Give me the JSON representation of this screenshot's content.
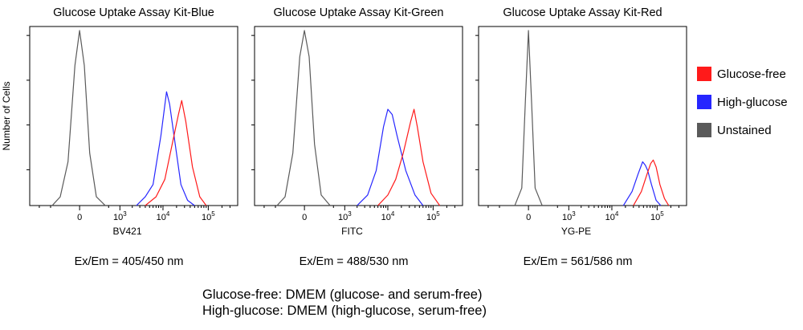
{
  "ylabel": "Number of Cells",
  "legend": [
    {
      "label": "Glucose-free",
      "color": "#ff1a1a"
    },
    {
      "label": "High-glucose",
      "color": "#2626ff"
    },
    {
      "label": "Unstained",
      "color": "#5a5a5a"
    }
  ],
  "notes": [
    "Glucose-free: DMEM (glucose- and serum-free)",
    "High-glucose: DMEM (high-glucose, serum-free)"
  ],
  "chart_data": [
    {
      "type": "area",
      "title": "Glucose Uptake Assay Kit-Blue",
      "xlabel": "BV421",
      "caption": "Ex/Em = 405/450 nm",
      "x_scale": "biexponential",
      "x_ticks": [
        "0",
        "10^3",
        "10^4",
        "10^5"
      ],
      "grid": false,
      "series": [
        {
          "name": "Unstained",
          "color": "#5a5a5a",
          "x": [
            -450,
            -250,
            -120,
            -40,
            0,
            40,
            100,
            200,
            400
          ],
          "y": [
            0,
            5,
            25,
            80,
            100,
            80,
            30,
            5,
            0
          ]
        },
        {
          "name": "High-glucose",
          "color": "#2626ff",
          "x": [
            2500,
            4000,
            6000,
            9000,
            12000,
            14000,
            18000,
            25000,
            35000,
            50000
          ],
          "y": [
            0,
            5,
            12,
            40,
            65,
            58,
            38,
            12,
            3,
            0
          ]
        },
        {
          "name": "Glucose-free",
          "color": "#ff1a1a",
          "x": [
            4000,
            7000,
            11000,
            16000,
            22000,
            26000,
            32000,
            45000,
            65000,
            90000
          ],
          "y": [
            0,
            5,
            15,
            35,
            52,
            60,
            48,
            22,
            5,
            0
          ]
        }
      ]
    },
    {
      "type": "area",
      "title": "Glucose Uptake Assay Kit-Green",
      "xlabel": "FITC",
      "caption": "Ex/Em = 488/530 nm",
      "x_scale": "biexponential",
      "x_ticks": [
        "0",
        "10^3",
        "10^4",
        "10^5"
      ],
      "grid": false,
      "series": [
        {
          "name": "Unstained",
          "color": "#5a5a5a",
          "x": [
            -450,
            -250,
            -120,
            -40,
            0,
            40,
            100,
            200,
            400
          ],
          "y": [
            0,
            5,
            30,
            85,
            100,
            85,
            35,
            6,
            0
          ]
        },
        {
          "name": "High-glucose",
          "color": "#2626ff",
          "x": [
            2000,
            3500,
            5500,
            8000,
            10000,
            12500,
            16000,
            25000,
            40000,
            60000
          ],
          "y": [
            0,
            6,
            20,
            45,
            55,
            52,
            40,
            20,
            6,
            0
          ]
        },
        {
          "name": "Glucose-free",
          "color": "#ff1a1a",
          "x": [
            6000,
            10000,
            15000,
            22000,
            32000,
            38000,
            45000,
            60000,
            90000,
            140000
          ],
          "y": [
            0,
            6,
            15,
            30,
            48,
            55,
            45,
            25,
            7,
            0
          ]
        }
      ]
    },
    {
      "type": "area",
      "title": "Glucose Uptake Assay Kit-Red",
      "xlabel": "YG-PE",
      "caption": "Ex/Em = 561/586 nm",
      "x_scale": "biexponential",
      "x_ticks": [
        "0",
        "10^3",
        "10^4",
        "10^5"
      ],
      "grid": false,
      "series": [
        {
          "name": "Unstained",
          "color": "#5a5a5a",
          "x": [
            -150,
            -60,
            -25,
            0,
            25,
            60,
            150
          ],
          "y": [
            0,
            10,
            60,
            100,
            60,
            10,
            0
          ]
        },
        {
          "name": "High-glucose",
          "color": "#2626ff",
          "x": [
            18000,
            28000,
            38000,
            48000,
            55000,
            62000,
            75000,
            95000,
            120000
          ],
          "y": [
            0,
            8,
            18,
            25,
            23,
            20,
            12,
            3,
            0
          ]
        },
        {
          "name": "Glucose-free",
          "color": "#ff1a1a",
          "x": [
            30000,
            45000,
            60000,
            72000,
            82000,
            95000,
            115000,
            145000,
            180000
          ],
          "y": [
            0,
            8,
            18,
            24,
            26,
            22,
            12,
            4,
            0
          ]
        }
      ]
    }
  ]
}
